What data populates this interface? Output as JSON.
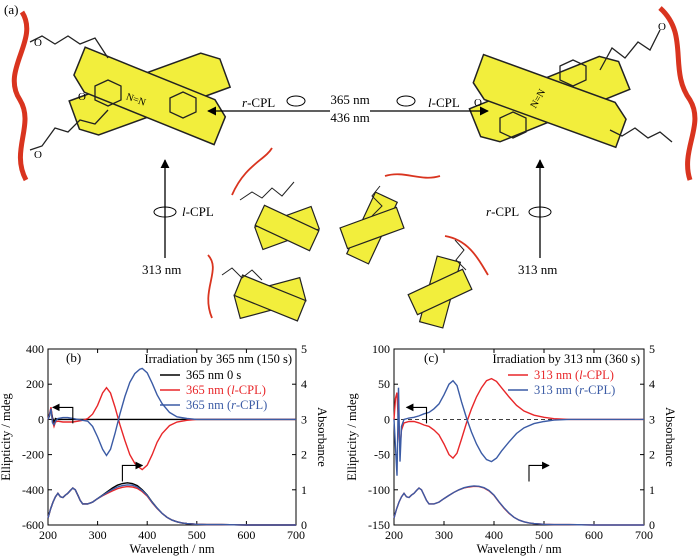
{
  "panel_labels": {
    "a": "(a)",
    "b": "(b)",
    "c": "(c)"
  },
  "scheme": {
    "center_top": "365 nm",
    "center_bottom": "436 nm",
    "left_arrow_prefix": "r",
    "left_arrow_suffix": "-CPL",
    "right_arrow_prefix": "l",
    "right_arrow_suffix": "-CPL",
    "up_left_prefix": "l",
    "up_left_suffix": "-CPL",
    "up_left_wavelength": "313 nm",
    "up_right_prefix": "r",
    "up_right_suffix": "-CPL",
    "up_right_wavelength": "313 nm",
    "azo_label": "N=N",
    "o_label": "O"
  },
  "colors": {
    "black": "#000000",
    "red": "#e8272a",
    "blue": "#3b5ba5",
    "yellow": "#f2ee3c",
    "chain_red": "#d9341f"
  },
  "chart_data": [
    {
      "type": "line",
      "panel": "(b)",
      "title": "Irradiation by 365 nm (150 s)",
      "xlabel": "Wavelength / nm",
      "ylabel": "Ellipticity / mdeg",
      "y2label": "Absorbance",
      "xlim": [
        200,
        700
      ],
      "ylim": [
        -600,
        400
      ],
      "y2lim": [
        0,
        5
      ],
      "xticks": [
        "200",
        "300",
        "400",
        "500",
        "600",
        "700"
      ],
      "yticks": [
        "400",
        "200",
        "0",
        "-200",
        "-400",
        "-600"
      ],
      "y2ticks": [
        "0",
        "1",
        "2",
        "3",
        "4",
        "5"
      ],
      "legend": [
        {
          "prefix": "365 nm 0 s",
          "ital": "",
          "suffix": "",
          "color": "#000000"
        },
        {
          "prefix": "365 nm (",
          "ital": "l",
          "suffix": "-CPL)",
          "color": "#e8272a"
        },
        {
          "prefix": "365 nm (",
          "ital": "r",
          "suffix": "-CPL)",
          "color": "#3b5ba5"
        }
      ],
      "series": [
        {
          "name": "365 nm 0 s",
          "axis": "left",
          "color": "#000000",
          "x": [
            200,
            203,
            206,
            209,
            212,
            215,
            220,
            225,
            230,
            240,
            250,
            260,
            280,
            300,
            350,
            400,
            500,
            600,
            700
          ],
          "y": [
            0,
            20,
            60,
            10,
            -15,
            5,
            0,
            0,
            0,
            0,
            0,
            0,
            0,
            0,
            0,
            0,
            0,
            0,
            0
          ]
        },
        {
          "name": "365 nm (l-CPL)",
          "axis": "left",
          "color": "#e8272a",
          "x": [
            200,
            203,
            206,
            209,
            212,
            215,
            220,
            230,
            240,
            250,
            260,
            270,
            280,
            290,
            300,
            310,
            318,
            326,
            335,
            345,
            355,
            365,
            375,
            385,
            390,
            400,
            410,
            420,
            430,
            445,
            460,
            480,
            500,
            550,
            600,
            700
          ],
          "y": [
            0,
            30,
            70,
            -10,
            -40,
            -15,
            -10,
            -15,
            -15,
            -15,
            -10,
            -5,
            5,
            30,
            80,
            150,
            180,
            150,
            70,
            -30,
            -120,
            -200,
            -250,
            -275,
            -285,
            -260,
            -200,
            -130,
            -80,
            -35,
            -15,
            -5,
            0,
            0,
            0,
            0
          ]
        },
        {
          "name": "365 nm (r-CPL)",
          "axis": "left",
          "color": "#3b5ba5",
          "x": [
            200,
            203,
            206,
            209,
            212,
            215,
            220,
            230,
            240,
            250,
            260,
            270,
            280,
            290,
            300,
            310,
            318,
            326,
            335,
            345,
            355,
            365,
            375,
            385,
            390,
            400,
            410,
            420,
            430,
            445,
            460,
            480,
            500,
            550,
            600,
            700
          ],
          "y": [
            0,
            25,
            60,
            -20,
            -30,
            -10,
            5,
            10,
            10,
            5,
            0,
            -5,
            -10,
            -40,
            -100,
            -170,
            -205,
            -170,
            -80,
            30,
            130,
            210,
            260,
            285,
            290,
            265,
            205,
            140,
            90,
            40,
            15,
            5,
            0,
            0,
            0,
            0
          ]
        },
        {
          "name": "abs-0",
          "axis": "right",
          "color": "#000000",
          "x": [
            200,
            205,
            210,
            215,
            220,
            225,
            230,
            235,
            240,
            245,
            250,
            255,
            260,
            265,
            270,
            280,
            290,
            300,
            310,
            320,
            330,
            340,
            350,
            360,
            370,
            380,
            390,
            400,
            410,
            420,
            430,
            440,
            450,
            460,
            470,
            480,
            490,
            500,
            520,
            550,
            600,
            650,
            700
          ],
          "y": [
            0.2,
            0.45,
            0.65,
            0.8,
            0.9,
            0.8,
            0.78,
            0.85,
            0.9,
            0.98,
            1.05,
            1.0,
            0.85,
            0.7,
            0.6,
            0.6,
            0.65,
            0.75,
            0.85,
            0.95,
            1.05,
            1.13,
            1.18,
            1.2,
            1.18,
            1.12,
            1.0,
            0.85,
            0.65,
            0.48,
            0.33,
            0.22,
            0.14,
            0.09,
            0.06,
            0.04,
            0.03,
            0.02,
            0.01,
            0.01,
            0,
            0,
            0
          ]
        },
        {
          "name": "abs-l",
          "axis": "right",
          "color": "#e8272a",
          "x": [
            200,
            205,
            210,
            215,
            220,
            225,
            230,
            235,
            240,
            245,
            250,
            255,
            260,
            265,
            270,
            280,
            290,
            300,
            310,
            320,
            330,
            340,
            350,
            360,
            370,
            380,
            390,
            400,
            410,
            420,
            430,
            440,
            450,
            460,
            470,
            480,
            490,
            500,
            520,
            550,
            600,
            650,
            700
          ],
          "y": [
            0.2,
            0.45,
            0.65,
            0.8,
            0.9,
            0.8,
            0.78,
            0.85,
            0.9,
            0.98,
            1.05,
            1.0,
            0.85,
            0.7,
            0.6,
            0.6,
            0.65,
            0.75,
            0.83,
            0.9,
            0.97,
            1.03,
            1.07,
            1.09,
            1.08,
            1.04,
            0.95,
            0.82,
            0.63,
            0.47,
            0.33,
            0.22,
            0.14,
            0.09,
            0.06,
            0.04,
            0.03,
            0.02,
            0.01,
            0.01,
            0,
            0,
            0
          ]
        },
        {
          "name": "abs-r",
          "axis": "right",
          "color": "#3b5ba5",
          "x": [
            200,
            205,
            210,
            215,
            220,
            225,
            230,
            235,
            240,
            245,
            250,
            255,
            260,
            265,
            270,
            280,
            290,
            300,
            310,
            320,
            330,
            340,
            350,
            360,
            370,
            380,
            390,
            400,
            410,
            420,
            430,
            440,
            450,
            460,
            470,
            480,
            490,
            500,
            520,
            550,
            600,
            650,
            700
          ],
          "y": [
            0.2,
            0.45,
            0.65,
            0.8,
            0.9,
            0.8,
            0.78,
            0.85,
            0.9,
            0.98,
            1.05,
            1.0,
            0.85,
            0.7,
            0.6,
            0.6,
            0.65,
            0.75,
            0.84,
            0.93,
            1.01,
            1.08,
            1.12,
            1.14,
            1.13,
            1.08,
            0.98,
            0.84,
            0.64,
            0.48,
            0.33,
            0.22,
            0.14,
            0.09,
            0.06,
            0.04,
            0.03,
            0.02,
            0.01,
            0.01,
            0,
            0,
            0
          ]
        }
      ],
      "arrows": [
        {
          "dir": "left",
          "x": 250,
          "y": 0.6
        },
        {
          "dir": "right",
          "x": 350,
          "y": 1.35
        }
      ]
    },
    {
      "type": "line",
      "panel": "(c)",
      "title": "Irradiation by 313 nm (360 s)",
      "xlabel": "Wavelength / nm",
      "ylabel": "Ellipticity / mdeg",
      "y2label": "Absorbance",
      "xlim": [
        200,
        700
      ],
      "ylim": [
        -150,
        100
      ],
      "y2lim": [
        0,
        5
      ],
      "xticks": [
        "200",
        "300",
        "400",
        "500",
        "600",
        "700"
      ],
      "yticks": [
        "100",
        "50",
        "0",
        "-50",
        "-100",
        "-150"
      ],
      "y2ticks": [
        "0",
        "1",
        "2",
        "3",
        "4",
        "5"
      ],
      "legend": [
        {
          "prefix": "313 nm (",
          "ital": "l",
          "suffix": "-CPL)",
          "color": "#e8272a"
        },
        {
          "prefix": "313 nm (",
          "ital": "r",
          "suffix": "-CPL)",
          "color": "#3b5ba5"
        }
      ],
      "series": [
        {
          "name": "313 nm (l-CPL)",
          "axis": "left",
          "color": "#e8272a",
          "x": [
            200,
            203,
            206,
            209,
            212,
            215,
            220,
            230,
            240,
            250,
            260,
            270,
            280,
            290,
            300,
            310,
            318,
            326,
            335,
            345,
            355,
            365,
            375,
            385,
            395,
            405,
            415,
            430,
            445,
            460,
            480,
            500,
            520,
            550,
            600,
            700
          ],
          "y": [
            0,
            30,
            38,
            -10,
            -40,
            -15,
            -5,
            -3,
            -3,
            -5,
            -8,
            -10,
            -15,
            -22,
            -35,
            -50,
            -55,
            -48,
            -28,
            -5,
            15,
            32,
            45,
            55,
            58,
            54,
            45,
            32,
            20,
            12,
            6,
            3,
            1,
            0,
            0,
            0
          ]
        },
        {
          "name": "313 nm (r-CPL)",
          "axis": "left",
          "color": "#3b5ba5",
          "x": [
            200,
            203,
            206,
            209,
            212,
            215,
            220,
            230,
            240,
            250,
            260,
            270,
            280,
            290,
            300,
            310,
            318,
            326,
            335,
            345,
            355,
            365,
            375,
            385,
            395,
            405,
            415,
            430,
            445,
            460,
            480,
            500,
            520,
            550,
            600,
            700
          ],
          "y": [
            0,
            -40,
            -80,
            45,
            -60,
            -10,
            0,
            2,
            3,
            5,
            8,
            10,
            15,
            22,
            35,
            50,
            55,
            48,
            25,
            2,
            -18,
            -35,
            -48,
            -57,
            -60,
            -55,
            -45,
            -32,
            -20,
            -12,
            -6,
            -3,
            -1,
            0,
            0,
            0
          ]
        },
        {
          "name": "abs-l",
          "axis": "right",
          "color": "#e8272a",
          "x": [
            200,
            205,
            210,
            215,
            220,
            225,
            230,
            235,
            240,
            245,
            250,
            255,
            260,
            265,
            270,
            280,
            290,
            300,
            310,
            320,
            330,
            340,
            350,
            360,
            370,
            380,
            390,
            400,
            410,
            420,
            430,
            440,
            450,
            460,
            470,
            480,
            490,
            500,
            520,
            550,
            600,
            650,
            700
          ],
          "y": [
            0.2,
            0.45,
            0.65,
            0.8,
            0.9,
            0.8,
            0.78,
            0.85,
            0.9,
            0.98,
            1.05,
            1.0,
            0.85,
            0.7,
            0.6,
            0.6,
            0.65,
            0.75,
            0.84,
            0.93,
            1.0,
            1.05,
            1.08,
            1.1,
            1.09,
            1.05,
            0.97,
            0.84,
            0.65,
            0.48,
            0.33,
            0.22,
            0.14,
            0.09,
            0.06,
            0.04,
            0.03,
            0.02,
            0.01,
            0.01,
            0,
            0,
            0
          ]
        },
        {
          "name": "abs-r",
          "axis": "right",
          "color": "#3b5ba5",
          "x": [
            200,
            205,
            210,
            215,
            220,
            225,
            230,
            235,
            240,
            245,
            250,
            255,
            260,
            265,
            270,
            280,
            290,
            300,
            310,
            320,
            330,
            340,
            350,
            360,
            370,
            380,
            390,
            400,
            410,
            420,
            430,
            440,
            450,
            460,
            470,
            480,
            490,
            500,
            520,
            550,
            600,
            650,
            700
          ],
          "y": [
            0.2,
            0.45,
            0.65,
            0.8,
            0.9,
            0.8,
            0.78,
            0.85,
            0.9,
            0.98,
            1.05,
            1.0,
            0.85,
            0.7,
            0.6,
            0.6,
            0.65,
            0.75,
            0.84,
            0.93,
            1.0,
            1.06,
            1.09,
            1.11,
            1.1,
            1.06,
            0.98,
            0.85,
            0.66,
            0.49,
            0.34,
            0.22,
            0.14,
            0.09,
            0.06,
            0.04,
            0.03,
            0.02,
            0.01,
            0.01,
            0,
            0,
            0
          ]
        }
      ],
      "arrows": [
        {
          "dir": "left",
          "x": 265,
          "y": 3.6
        },
        {
          "dir": "right",
          "x": 470,
          "y": 1.35
        }
      ]
    }
  ]
}
